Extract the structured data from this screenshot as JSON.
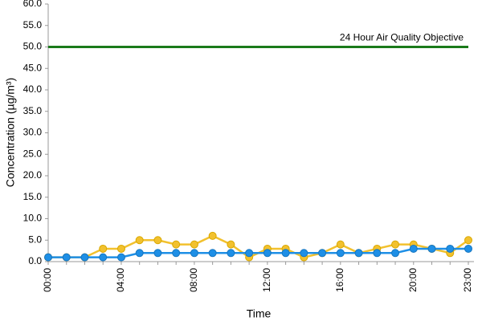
{
  "chart_data": {
    "type": "line",
    "x_label": "Time",
    "y_label": "Concentration (µg/m³)",
    "categories": [
      "00:00",
      null,
      null,
      null,
      "04:00",
      null,
      null,
      null,
      "08:00",
      null,
      null,
      null,
      "12:00",
      null,
      null,
      null,
      "16:00",
      null,
      null,
      null,
      "20:00",
      null,
      null,
      "23:00"
    ],
    "series": [
      {
        "color": "#f2c12e",
        "values": [
          1,
          1,
          1,
          3,
          3,
          5,
          5,
          4,
          4,
          6,
          4,
          1,
          3,
          3,
          1,
          2,
          4,
          2,
          3,
          4,
          4,
          3,
          2,
          5
        ]
      },
      {
        "color": "#1e8fe6",
        "values": [
          1,
          1,
          1,
          1,
          1,
          2,
          2,
          2,
          2,
          2,
          2,
          2,
          2,
          2,
          2,
          2,
          2,
          2,
          2,
          2,
          3,
          3,
          3,
          3
        ]
      }
    ],
    "reference_line": {
      "value": 50,
      "label": "24 Hour Air Quality Objective",
      "color": "#1a7a1a"
    },
    "ylim": [
      0,
      60
    ],
    "yticks": [
      {
        "value": 0,
        "label": "0.0"
      },
      {
        "value": 5,
        "label": "5.0"
      },
      {
        "value": 10,
        "label": "10.0"
      },
      {
        "value": 15,
        "label": "15.0"
      },
      {
        "value": 20,
        "label": "20.0"
      },
      {
        "value": 25,
        "label": "25.0"
      },
      {
        "value": 30,
        "label": "30.0"
      },
      {
        "value": 35,
        "label": "35.0"
      },
      {
        "value": 40,
        "label": "40.0"
      },
      {
        "value": 45,
        "label": "45.0"
      },
      {
        "value": 50,
        "label": "50.0"
      },
      {
        "value": 55,
        "label": "55.0"
      },
      {
        "value": 60,
        "label": "60.0"
      }
    ],
    "grid": false
  }
}
